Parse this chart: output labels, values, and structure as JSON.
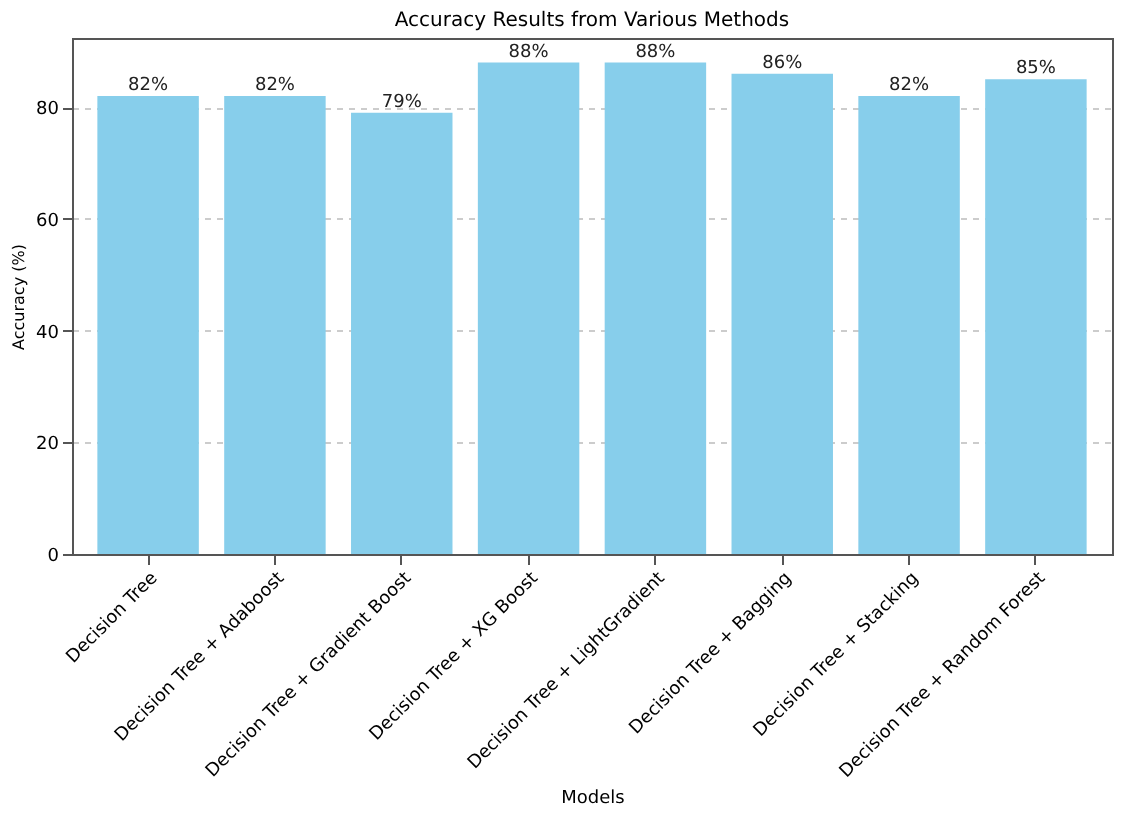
{
  "chart_data": {
    "type": "bar",
    "title": "Accuracy Results from Various Methods",
    "xlabel": "Models",
    "ylabel": "Accuracy (%)",
    "categories": [
      "Decision Tree",
      "Decision Tree + Adaboost",
      "Decision Tree + Gradient Boost",
      "Decision Tree + XG Boost",
      "Decision Tree + LightGradient",
      "Decision Tree + Bagging",
      "Decision Tree + Stacking",
      "Decision Tree + Random Forest"
    ],
    "values": [
      82,
      82,
      79,
      88,
      88,
      86,
      82,
      85
    ],
    "value_labels": [
      "82%",
      "82%",
      "79%",
      "88%",
      "88%",
      "86%",
      "82%",
      "85%"
    ],
    "color": "#87ceeb",
    "ylim": [
      0,
      92.4
    ],
    "yticks": [
      0,
      20,
      40,
      60,
      80
    ],
    "grid": "y"
  }
}
